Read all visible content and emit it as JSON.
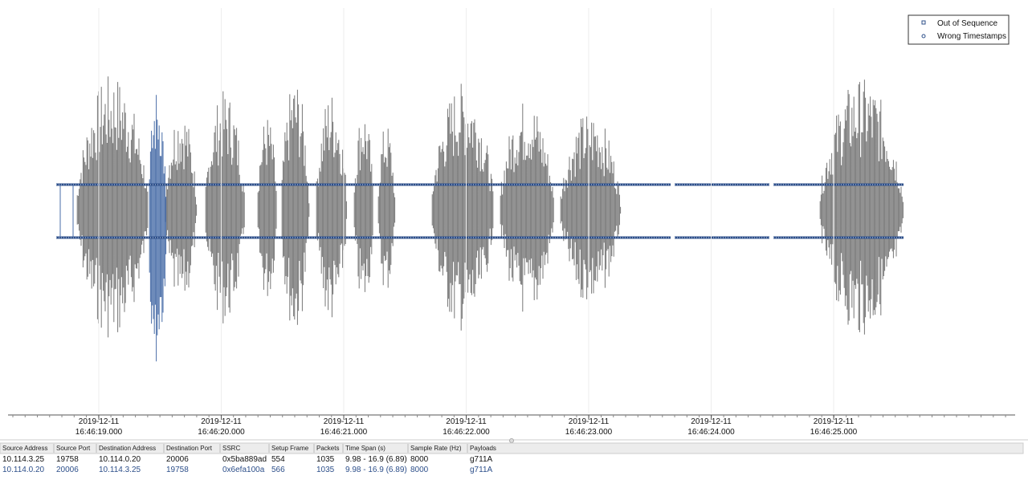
{
  "legend": [
    "Out of Sequence",
    "Wrong Timestamps"
  ],
  "time_axis": [
    {
      "date": "2019-12-11",
      "time": "16:46:19.000"
    },
    {
      "date": "2019-12-11",
      "time": "16:46:20.000"
    },
    {
      "date": "2019-12-11",
      "time": "16:46:21.000"
    },
    {
      "date": "2019-12-11",
      "time": "16:46:22.000"
    },
    {
      "date": "2019-12-11",
      "time": "16:46:23.000"
    },
    {
      "date": "2019-12-11",
      "time": "16:46:24.000"
    },
    {
      "date": "2019-12-11",
      "time": "16:46:25.000"
    }
  ],
  "table": {
    "headers": [
      "Source Address",
      "Source Port",
      "Destination Address",
      "Destination Port",
      "SSRC",
      "Setup Frame",
      "Packets",
      "Time Span (s)",
      "Sample Rate (Hz)",
      "Payloads"
    ],
    "rows": [
      [
        "10.114.3.25",
        "19758",
        "10.114.0.20",
        "20006",
        "0x5ba889ad",
        "554",
        "1035",
        "9.98 - 16.9 (6.89)",
        "8000",
        "g711A"
      ],
      [
        "10.114.0.20",
        "20006",
        "10.114.3.25",
        "19758",
        "0x6efa100a",
        "566",
        "1035",
        "9.98 - 16.9 (6.89)",
        "8000",
        "g711A"
      ]
    ]
  }
}
